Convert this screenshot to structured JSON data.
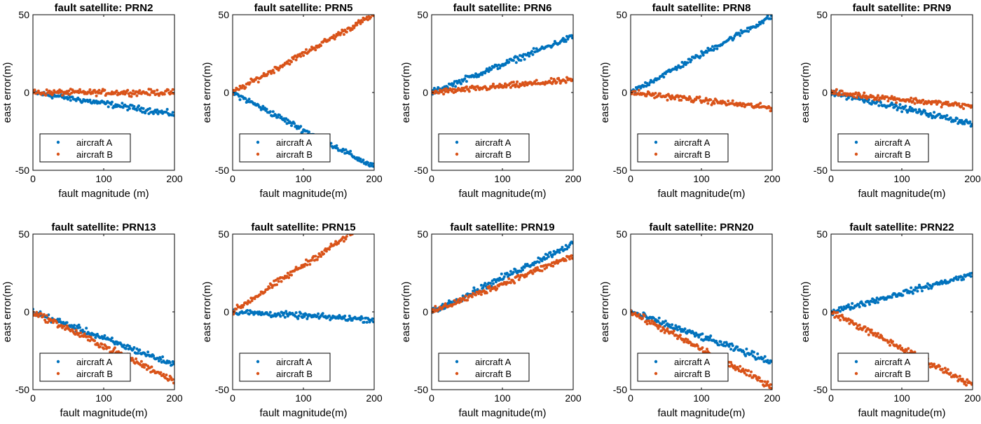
{
  "chart_data": [
    {
      "type": "scatter",
      "title": "fault satellite: PRN2",
      "xlabel": "fault magnitude (m)",
      "ylabel": "east error(m)",
      "xlim": [
        0,
        200
      ],
      "ylim": [
        -50,
        50
      ],
      "xticks": [
        "0",
        "100",
        "200"
      ],
      "yticks": [
        "50",
        "0",
        "-50"
      ],
      "legend": {
        "location": "bottom-left",
        "entries": [
          "aircraft A",
          "aircraft B"
        ]
      },
      "series": [
        {
          "name": "aircraft A",
          "color": "#0072BD",
          "slope": -0.07,
          "intercept": 0,
          "noise": 1.6
        },
        {
          "name": "aircraft B",
          "color": "#D95319",
          "slope": 0.0,
          "intercept": 0,
          "noise": 1.6
        }
      ]
    },
    {
      "type": "scatter",
      "title": "fault satellite: PRN5",
      "xlabel": "fault magnitude(m)",
      "ylabel": "east error(m)",
      "xlim": [
        0,
        200
      ],
      "ylim": [
        -50,
        50
      ],
      "xticks": [
        "0",
        "100",
        "200"
      ],
      "yticks": [
        "50",
        "0",
        "-50"
      ],
      "legend": {
        "location": "bottom-left",
        "entries": [
          "aircraft A",
          "aircraft B"
        ]
      },
      "series": [
        {
          "name": "aircraft A",
          "color": "#0072BD",
          "slope": -0.24,
          "intercept": 0,
          "noise": 1.6
        },
        {
          "name": "aircraft B",
          "color": "#D95319",
          "slope": 0.25,
          "intercept": 0,
          "noise": 1.6
        }
      ]
    },
    {
      "type": "scatter",
      "title": "fault satellite: PRN6",
      "xlabel": "fault magnitude(m)",
      "ylabel": "east error(m)",
      "xlim": [
        0,
        200
      ],
      "ylim": [
        -50,
        50
      ],
      "xticks": [
        "0",
        "100",
        "200"
      ],
      "yticks": [
        "50",
        "0",
        "-50"
      ],
      "legend": {
        "location": "bottom-left",
        "entries": [
          "aircraft A",
          "aircraft B"
        ]
      },
      "series": [
        {
          "name": "aircraft A",
          "color": "#0072BD",
          "slope": 0.18,
          "intercept": 0,
          "noise": 1.6
        },
        {
          "name": "aircraft B",
          "color": "#D95319",
          "slope": 0.04,
          "intercept": 0,
          "noise": 1.6
        }
      ]
    },
    {
      "type": "scatter",
      "title": "fault satellite: PRN8",
      "xlabel": "fault magnitude(m)",
      "ylabel": "east error(m)",
      "xlim": [
        0,
        200
      ],
      "ylim": [
        -50,
        50
      ],
      "xticks": [
        "0",
        "100",
        "200"
      ],
      "yticks": [
        "50",
        "0",
        "-50"
      ],
      "legend": {
        "location": "bottom-left",
        "entries": [
          "aircraft A",
          "aircraft B"
        ]
      },
      "series": [
        {
          "name": "aircraft A",
          "color": "#0072BD",
          "slope": 0.245,
          "intercept": 0,
          "noise": 1.6
        },
        {
          "name": "aircraft B",
          "color": "#D95319",
          "slope": -0.05,
          "intercept": 0,
          "noise": 1.6
        }
      ]
    },
    {
      "type": "scatter",
      "title": "fault satellite: PRN9",
      "xlabel": "fault magnitude(m)",
      "ylabel": "east error(m)",
      "xlim": [
        0,
        200
      ],
      "ylim": [
        -50,
        50
      ],
      "xticks": [
        "0",
        "100",
        "200"
      ],
      "yticks": [
        "50",
        "0",
        "-50"
      ],
      "legend": {
        "location": "bottom-left",
        "entries": [
          "aircraft A",
          "aircraft B"
        ]
      },
      "series": [
        {
          "name": "aircraft A",
          "color": "#0072BD",
          "slope": -0.1,
          "intercept": 0,
          "noise": 1.6
        },
        {
          "name": "aircraft B",
          "color": "#D95319",
          "slope": -0.045,
          "intercept": 0,
          "noise": 1.6
        }
      ]
    },
    {
      "type": "scatter",
      "title": "fault satellite: PRN13",
      "xlabel": "fault magnitude(m)",
      "ylabel": "east error(m)",
      "xlim": [
        0,
        200
      ],
      "ylim": [
        -50,
        50
      ],
      "xticks": [
        "0",
        "100",
        "200"
      ],
      "yticks": [
        "50",
        "0",
        "-50"
      ],
      "legend": {
        "location": "bottom-left",
        "entries": [
          "aircraft A",
          "aircraft B"
        ]
      },
      "series": [
        {
          "name": "aircraft A",
          "color": "#0072BD",
          "slope": -0.17,
          "intercept": 0,
          "noise": 1.8
        },
        {
          "name": "aircraft B",
          "color": "#D95319",
          "slope": -0.22,
          "intercept": 0,
          "noise": 1.8
        }
      ]
    },
    {
      "type": "scatter",
      "title": "fault satellite: PRN15",
      "xlabel": "fault magnitude(m)",
      "ylabel": "east error(m)",
      "xlim": [
        0,
        200
      ],
      "ylim": [
        -50,
        50
      ],
      "xticks": [
        "0",
        "100",
        "200"
      ],
      "yticks": [
        "50",
        "0",
        "-50"
      ],
      "legend": {
        "location": "bottom-left",
        "entries": [
          "aircraft A",
          "aircraft B"
        ]
      },
      "series": [
        {
          "name": "aircraft A",
          "color": "#0072BD",
          "slope": -0.025,
          "intercept": 0,
          "noise": 1.6
        },
        {
          "name": "aircraft B",
          "color": "#D95319",
          "slope": 0.3,
          "intercept": 0,
          "noise": 1.8
        }
      ]
    },
    {
      "type": "scatter",
      "title": "fault satellite: PRN19",
      "xlabel": "fault magnitude(m)",
      "ylabel": "east error(m)",
      "xlim": [
        0,
        200
      ],
      "ylim": [
        -50,
        50
      ],
      "xticks": [
        "0",
        "100",
        "200"
      ],
      "yticks": [
        "50",
        "0",
        "-50"
      ],
      "legend": {
        "location": "bottom-left",
        "entries": [
          "aircraft A",
          "aircraft B"
        ]
      },
      "series": [
        {
          "name": "aircraft A",
          "color": "#0072BD",
          "slope": 0.22,
          "intercept": 0,
          "noise": 1.8
        },
        {
          "name": "aircraft B",
          "color": "#D95319",
          "slope": 0.18,
          "intercept": 0,
          "noise": 1.8
        }
      ]
    },
    {
      "type": "scatter",
      "title": "fault satellite: PRN20",
      "xlabel": "fault magnitude(m)",
      "ylabel": "east error(m)",
      "xlim": [
        0,
        200
      ],
      "ylim": [
        -50,
        50
      ],
      "xticks": [
        "0",
        "100",
        "200"
      ],
      "yticks": [
        "50",
        "0",
        "-50"
      ],
      "legend": {
        "location": "bottom-left",
        "entries": [
          "aircraft A",
          "aircraft B"
        ]
      },
      "series": [
        {
          "name": "aircraft A",
          "color": "#0072BD",
          "slope": -0.16,
          "intercept": 0,
          "noise": 1.8
        },
        {
          "name": "aircraft B",
          "color": "#D95319",
          "slope": -0.24,
          "intercept": 0,
          "noise": 1.8
        }
      ]
    },
    {
      "type": "scatter",
      "title": "fault satellite: PRN22",
      "xlabel": "fault magnitude(m)",
      "ylabel": "east error(m)",
      "xlim": [
        0,
        200
      ],
      "ylim": [
        -50,
        50
      ],
      "xticks": [
        "0",
        "100",
        "200"
      ],
      "yticks": [
        "50",
        "0",
        "-50"
      ],
      "legend": {
        "location": "bottom-left",
        "entries": [
          "aircraft A",
          "aircraft B"
        ]
      },
      "series": [
        {
          "name": "aircraft A",
          "color": "#0072BD",
          "slope": 0.12,
          "intercept": 0,
          "noise": 1.6
        },
        {
          "name": "aircraft B",
          "color": "#D95319",
          "slope": -0.235,
          "intercept": 0,
          "noise": 1.8
        }
      ]
    }
  ]
}
